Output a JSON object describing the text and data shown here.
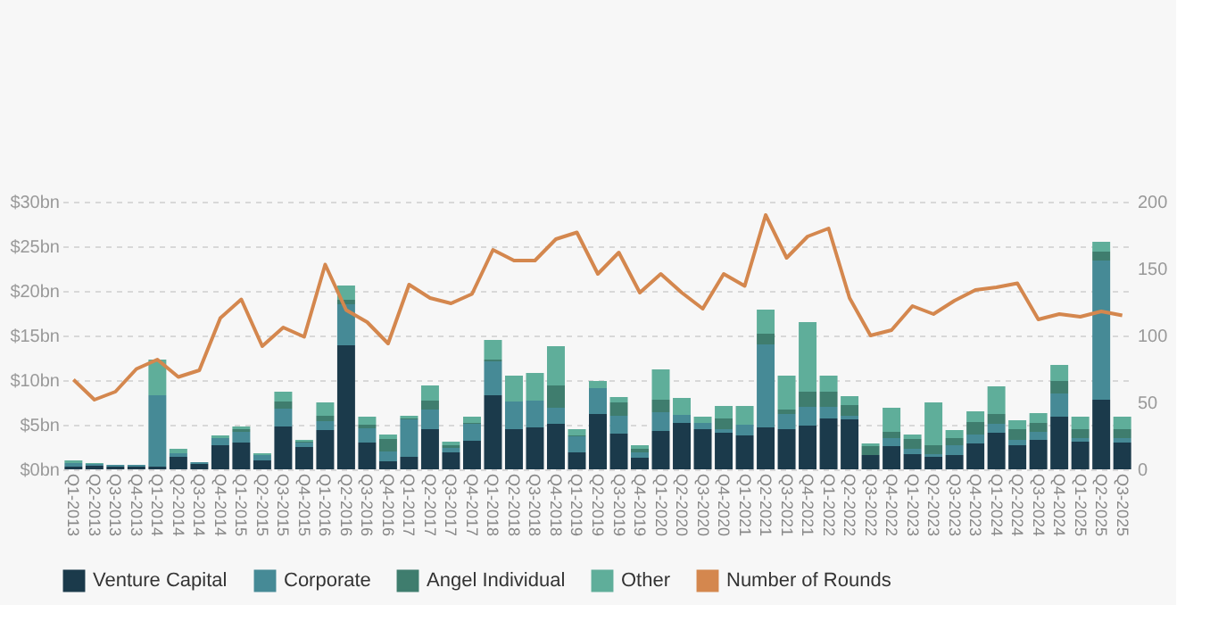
{
  "chart_data": {
    "type": "bar",
    "stacked": true,
    "categories": [
      "Q1-2013",
      "Q2-2013",
      "Q3-2013",
      "Q4-2013",
      "Q1-2014",
      "Q2-2014",
      "Q3-2014",
      "Q4-2014",
      "Q1-2015",
      "Q2-2015",
      "Q3-2015",
      "Q4-2015",
      "Q1-2016",
      "Q2-2016",
      "Q3-2016",
      "Q4-2016",
      "Q1-2017",
      "Q2-2017",
      "Q3-2017",
      "Q4-2017",
      "Q1-2018",
      "Q2-2018",
      "Q3-2018",
      "Q4-2018",
      "Q1-2019",
      "Q2-2019",
      "Q3-2019",
      "Q4-2019",
      "Q1-2020",
      "Q2-2020",
      "Q3-2020",
      "Q4-2020",
      "Q1-2021",
      "Q2-2021",
      "Q3-2021",
      "Q4-2021",
      "Q1-2022",
      "Q2-2022",
      "Q3-2022",
      "Q4-2022",
      "Q1-2023",
      "Q2-2023",
      "Q3-2023",
      "Q4-2023",
      "Q1-2024",
      "Q2-2024",
      "Q3-2024",
      "Q4-2024",
      "Q1-2025",
      "Q2-2025",
      "Q3-2025"
    ],
    "series": [
      {
        "name": "Venture Capital",
        "color": "#1b3a4b",
        "values": [
          0.3,
          0.4,
          0.3,
          0.3,
          0.3,
          1.4,
          0.6,
          2.7,
          3.0,
          1.0,
          4.8,
          2.5,
          4.4,
          13.9,
          3.0,
          0.9,
          1.4,
          4.5,
          1.9,
          3.2,
          8.3,
          4.5,
          4.7,
          5.1,
          1.9,
          6.2,
          4.0,
          1.3,
          4.3,
          5.2,
          4.5,
          4.1,
          3.8,
          4.7,
          4.5,
          4.9,
          5.7,
          5.6,
          1.6,
          2.6,
          1.7,
          1.4,
          1.6,
          2.9,
          4.1,
          2.7,
          3.3,
          5.9,
          3.1,
          7.8,
          3.0
        ]
      },
      {
        "name": "Corporate",
        "color": "#468a96",
        "values": [
          0.4,
          0.2,
          0.2,
          0.2,
          8.0,
          0.4,
          0.2,
          0.8,
          1.2,
          0.6,
          2.0,
          0.5,
          1.0,
          4.6,
          1.6,
          1.1,
          4.2,
          2.2,
          0.5,
          1.9,
          3.8,
          3.1,
          3.0,
          1.8,
          1.8,
          2.9,
          2.0,
          0.6,
          2.1,
          0.9,
          0.7,
          0.4,
          1.2,
          9.3,
          1.7,
          2.1,
          1.3,
          0.4,
          0.0,
          0.9,
          0.6,
          0.3,
          1.1,
          1.0,
          1.0,
          0.6,
          0.9,
          2.6,
          0.4,
          15.6,
          0.5
        ]
      },
      {
        "name": "Angel Individual",
        "color": "#3f7d6e",
        "values": [
          0.0,
          0.0,
          0.0,
          0.0,
          0.0,
          0.0,
          0.0,
          0.0,
          0.3,
          0.0,
          0.8,
          0.1,
          0.6,
          0.5,
          0.4,
          1.4,
          0.1,
          1.0,
          0.3,
          0.1,
          0.2,
          0.0,
          0.0,
          2.5,
          0.1,
          0.0,
          1.5,
          0.4,
          1.4,
          0.0,
          0.0,
          1.2,
          0.0,
          1.2,
          0.5,
          1.7,
          1.7,
          1.2,
          1.0,
          0.7,
          1.1,
          1.0,
          0.8,
          1.4,
          1.1,
          1.2,
          1.0,
          1.4,
          1.0,
          1.0,
          1.0
        ]
      },
      {
        "name": "Other",
        "color": "#5fae9a",
        "values": [
          0.3,
          0.1,
          0.0,
          0.0,
          4.0,
          0.5,
          0.0,
          0.3,
          0.3,
          0.2,
          1.1,
          0.2,
          1.5,
          1.6,
          0.9,
          0.5,
          0.3,
          1.7,
          0.4,
          0.7,
          2.2,
          2.9,
          3.1,
          4.4,
          0.7,
          0.8,
          0.6,
          0.4,
          3.4,
          1.9,
          0.7,
          1.4,
          2.1,
          2.7,
          3.8,
          7.8,
          1.8,
          1.0,
          0.3,
          2.7,
          0.5,
          4.8,
          0.9,
          1.2,
          3.1,
          1.0,
          1.1,
          1.8,
          1.4,
          1.1,
          1.4
        ]
      },
      {
        "name": "Number of Rounds",
        "color": "#d4874e",
        "type": "line",
        "axis": "y2",
        "values": [
          67,
          52,
          58,
          75,
          82,
          69,
          74,
          113,
          127,
          92,
          106,
          99,
          153,
          119,
          110,
          94,
          138,
          128,
          124,
          131,
          164,
          156,
          156,
          172,
          177,
          146,
          162,
          132,
          146,
          132,
          120,
          146,
          137,
          190,
          158,
          174,
          180,
          128,
          100,
          104,
          122,
          116,
          126,
          134,
          136,
          139,
          112,
          116,
          114,
          118,
          115
        ]
      }
    ],
    "ylim": [
      0,
      30
    ],
    "yticks": [
      {
        "value": 0,
        "label": "$0bn"
      },
      {
        "value": 5,
        "label": "$5bn"
      },
      {
        "value": 10,
        "label": "$10bn"
      },
      {
        "value": 15,
        "label": "$15bn"
      },
      {
        "value": 20,
        "label": "$20bn"
      },
      {
        "value": 25,
        "label": "$25bn"
      },
      {
        "value": 30,
        "label": "$30bn"
      }
    ],
    "y2lim": [
      0,
      200
    ],
    "y2ticks": [
      0,
      50,
      100,
      150,
      200
    ],
    "grid": "y",
    "legend": "bottom left"
  }
}
